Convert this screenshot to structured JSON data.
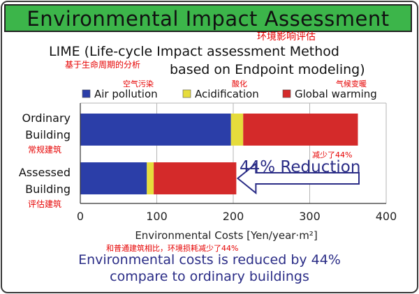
{
  "header": {
    "title": "Environmental Impact Assessment",
    "title_cn": "环境影响评估"
  },
  "subtitle": {
    "line1": "LIME (Life-cycle Impact assessment Method",
    "line2": "based on Endpoint modeling)",
    "cn": "基于生命周期的分析"
  },
  "annotation": {
    "reduction_label": "44% Reduction",
    "reduction_cn": "减少了44%",
    "xaxis_note_cn": "和普通建筑相比，环境损耗减少了44%"
  },
  "footer": {
    "line1": "Environmental costs is reduced by 44%",
    "line2": "compare to ordinary buildings"
  },
  "colors": {
    "banner": "#3cb54a",
    "air_pollution": "#2b3ea8",
    "acidification": "#e6dc3c",
    "global_warming": "#d42a2a",
    "annotation_text": "#2a2c86",
    "chinese_text": "#e60000"
  },
  "chart_data": {
    "type": "bar",
    "stacked": true,
    "orientation": "horizontal",
    "categories": [
      "Ordinary Building",
      "Assessed Building"
    ],
    "category_labels": [
      {
        "line1": "Ordinary",
        "line2": "Building",
        "cn": "常规建筑"
      },
      {
        "line1": "Assessed",
        "line2": "Building",
        "cn": "评估建筑"
      }
    ],
    "series": [
      {
        "name": "Air pollution",
        "name_cn": "空气污染",
        "values": [
          197,
          87
        ]
      },
      {
        "name": "Acidification",
        "name_cn": "酸化",
        "values": [
          16,
          9
        ]
      },
      {
        "name": "Global warming",
        "name_cn": "气候变暖",
        "values": [
          150,
          108
        ]
      }
    ],
    "xlabel": "Environmental Costs [Yen/year·m²]",
    "xlim": [
      0,
      400
    ],
    "xticks": [
      "0",
      "100",
      "200",
      "300",
      "400"
    ],
    "grid": "vertical",
    "legend": "top"
  }
}
